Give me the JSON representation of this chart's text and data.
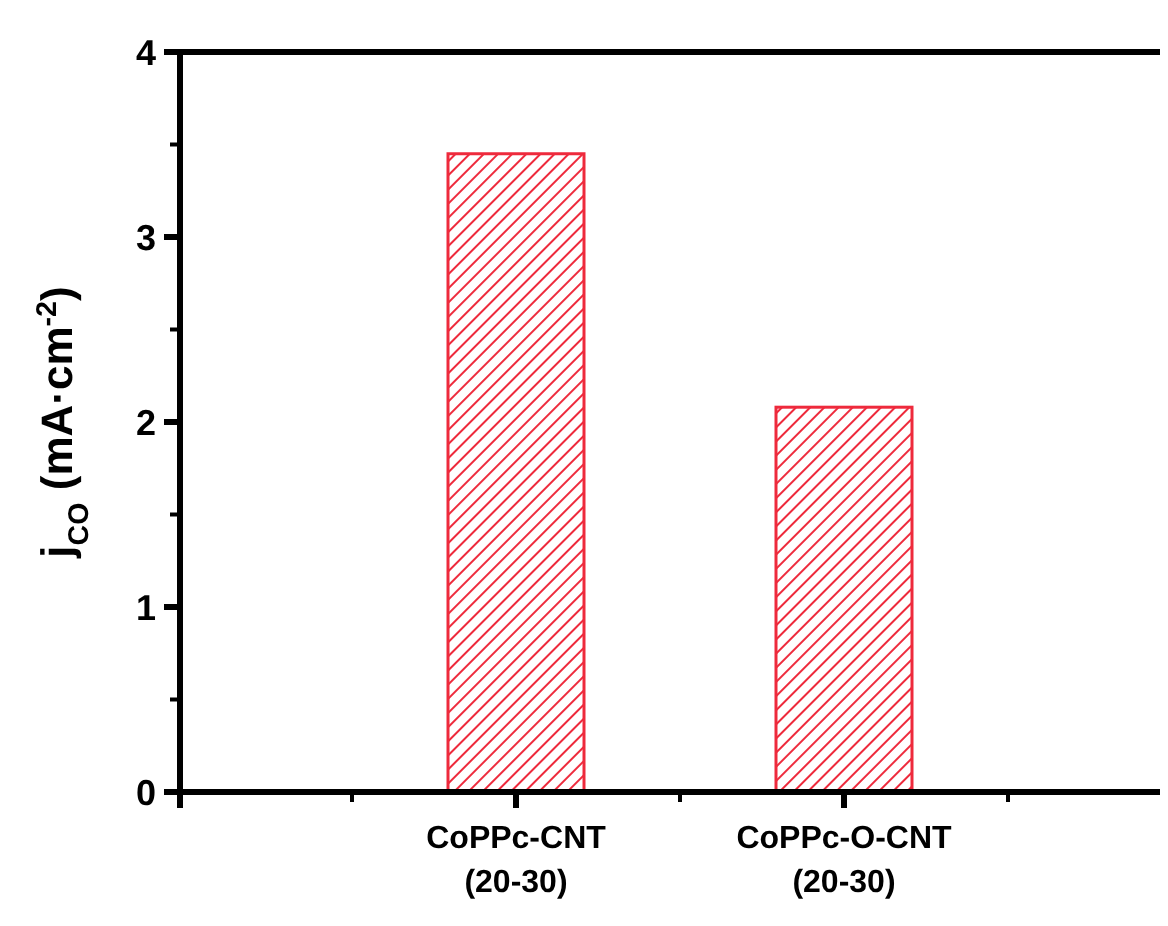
{
  "chart_data": {
    "type": "bar",
    "categories": [
      "CoPPc-CNT\n(20-30)",
      "CoPPc-O-CNT\n(20-30)"
    ],
    "values": [
      3.45,
      2.08
    ],
    "color": "#ee2a3c",
    "ylabel": "j$_{CO}$ (mA·cm$^{-2}$)",
    "ylim": [
      0,
      4
    ],
    "yticks": [
      0,
      1,
      2,
      3,
      4
    ],
    "grid": false
  }
}
